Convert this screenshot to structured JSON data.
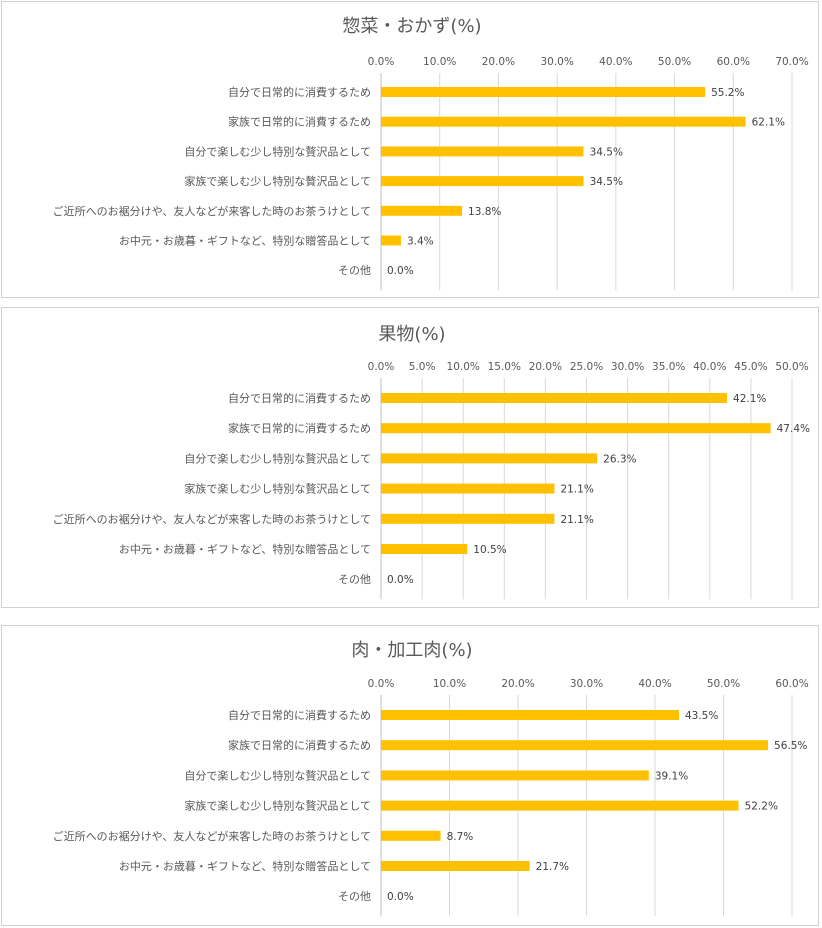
{
  "chart_data": [
    {
      "type": "bar",
      "orientation": "horizontal",
      "title": "惣菜・おかず(%)",
      "categories": [
        "自分で日常的に消費するため",
        "家族で日常的に消費するため",
        "自分で楽しむ少し特別な贅沢品として",
        "家族で楽しむ少し特別な贅沢品として",
        "ご近所へのお裾分けや、友人などが来客した時のお茶うけとして",
        "お中元・お歳暮・ギフトなど、特別な贈答品として",
        "その他"
      ],
      "values": [
        55.2,
        62.1,
        34.5,
        34.5,
        13.8,
        3.4,
        0.0
      ],
      "value_labels": [
        "55.2%",
        "62.1%",
        "34.5%",
        "34.5%",
        "13.8%",
        "3.4%",
        "0.0%"
      ],
      "x_ticks": [
        "0.0%",
        "10.0%",
        "20.0%",
        "30.0%",
        "40.0%",
        "50.0%",
        "60.0%",
        "70.0%"
      ],
      "xlim": [
        0,
        70
      ],
      "axis_position": "top",
      "grid": true,
      "bar_color": "#ffc000"
    },
    {
      "type": "bar",
      "orientation": "horizontal",
      "title": "果物(%)",
      "categories": [
        "自分で日常的に消費するため",
        "家族で日常的に消費するため",
        "自分で楽しむ少し特別な贅沢品として",
        "家族で楽しむ少し特別な贅沢品として",
        "ご近所へのお裾分けや、友人などが来客した時のお茶うけとして",
        "お中元・お歳暮・ギフトなど、特別な贈答品として",
        "その他"
      ],
      "values": [
        42.1,
        47.4,
        26.3,
        21.1,
        21.1,
        10.5,
        0.0
      ],
      "value_labels": [
        "42.1%",
        "47.4%",
        "26.3%",
        "21.1%",
        "21.1%",
        "10.5%",
        "0.0%"
      ],
      "x_ticks": [
        "0.0%",
        "5.0%",
        "10.0%",
        "15.0%",
        "20.0%",
        "25.0%",
        "30.0%",
        "35.0%",
        "40.0%",
        "45.0%",
        "50.0%"
      ],
      "xlim": [
        0,
        50
      ],
      "axis_position": "top",
      "grid": true,
      "bar_color": "#ffc000"
    },
    {
      "type": "bar",
      "orientation": "horizontal",
      "title": "肉・加工肉(%)",
      "categories": [
        "自分で日常的に消費するため",
        "家族で日常的に消費するため",
        "自分で楽しむ少し特別な贅沢品として",
        "家族で楽しむ少し特別な贅沢品として",
        "ご近所へのお裾分けや、友人などが来客した時のお茶うけとして",
        "お中元・お歳暮・ギフトなど、特別な贈答品として",
        "その他"
      ],
      "values": [
        43.5,
        56.5,
        39.1,
        52.2,
        8.7,
        21.7,
        0.0
      ],
      "value_labels": [
        "43.5%",
        "56.5%",
        "39.1%",
        "52.2%",
        "8.7%",
        "21.7%",
        "0.0%"
      ],
      "x_ticks": [
        "0.0%",
        "10.0%",
        "20.0%",
        "30.0%",
        "40.0%",
        "50.0%",
        "60.0%"
      ],
      "xlim": [
        0,
        60
      ],
      "axis_position": "top",
      "grid": true,
      "bar_color": "#ffc000"
    }
  ]
}
